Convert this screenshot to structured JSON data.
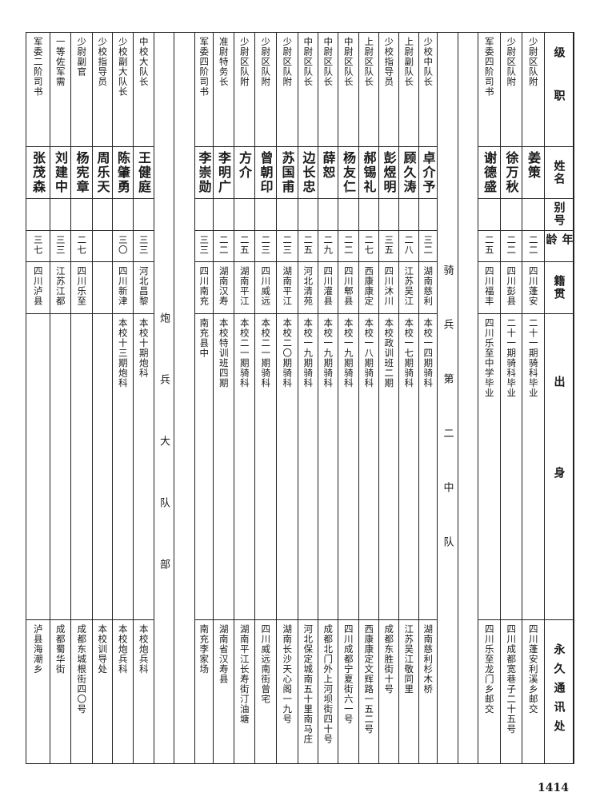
{
  "header": {
    "position": "级职",
    "name": "姓名",
    "alias": "别号",
    "age": "年龄",
    "hometown": "籍贯",
    "origin": "出身",
    "address": "永久通讯处"
  },
  "sections": {
    "cavalry": "骑兵第二中队",
    "artillery": "炮兵大队部"
  },
  "rows_prev_section": [
    {
      "position": "少尉区队附",
      "name": "姜策",
      "alias": "",
      "age": "二二",
      "hometown": "四川蓬安",
      "origin": "二十一期骑科毕业",
      "address": "四川蓬安利溪乡邮交"
    },
    {
      "position": "少尉区队附",
      "name": "徐万秋",
      "alias": "",
      "age": "二二",
      "hometown": "四川彭县",
      "origin": "二十一期骑科毕业",
      "address": "四川成都宽巷子二十五号"
    },
    {
      "position": "军委四阶司书",
      "name": "谢德盛",
      "alias": "",
      "age": "二五",
      "hometown": "四川福丰",
      "origin": "四川乐至中学毕业",
      "address": "四川乐至龙门乡邮交"
    }
  ],
  "rows_cavalry": [
    {
      "position": "少校中队长",
      "name": "卓介予",
      "alias": "",
      "age": "三二",
      "hometown": "湖南慈利",
      "origin": "本校一四期骑科",
      "address": "湖南慈利杉木桥"
    },
    {
      "position": "上尉副队长",
      "name": "顾久涛",
      "alias": "",
      "age": "二八",
      "hometown": "江苏吴江",
      "origin": "本校一七期骑科",
      "address": "江苏吴江敬同里"
    },
    {
      "position": "少校指导员",
      "name": "彭煜明",
      "alias": "",
      "age": "三五",
      "hometown": "四川沐川",
      "origin": "本校政训班二期",
      "address": "成都东胜街十号"
    },
    {
      "position": "上尉区队长",
      "name": "郝锡礼",
      "alias": "",
      "age": "二七",
      "hometown": "西康康定",
      "origin": "本校一八期骑科",
      "address": "西康康定文辉路一五二号"
    },
    {
      "position": "中尉区队长",
      "name": "杨友仁",
      "alias": "",
      "age": "二二",
      "hometown": "四川郫县",
      "origin": "本校一九期骑科",
      "address": "四川成都宁夏街六一号"
    },
    {
      "position": "中尉区队长",
      "name": "薛恕",
      "alias": "",
      "age": "二九",
      "hometown": "四川灌县",
      "origin": "本校一九期骑科",
      "address": "成都北门外上河坝街四十号"
    },
    {
      "position": "中尉区队长",
      "name": "边长忠",
      "alias": "",
      "age": "二五",
      "hometown": "河北清苑",
      "origin": "本校一九期骑科",
      "address": "河北保定城南五十里南马庄"
    },
    {
      "position": "少尉区队附",
      "name": "苏国甫",
      "alias": "",
      "age": "二三",
      "hometown": "湖南平江",
      "origin": "本校二〇期骑科",
      "address": "湖南长沙天心阁一九号"
    },
    {
      "position": "少尉区队附",
      "name": "曾朝印",
      "alias": "",
      "age": "二三",
      "hometown": "四川威远",
      "origin": "本校二一期骑科",
      "address": "四川威远南街曾宅"
    },
    {
      "position": "少尉区队附",
      "name": "方介",
      "alias": "",
      "age": "二五",
      "hometown": "湖南平江",
      "origin": "本校二一期骑科",
      "address": "湖南平江长寿街汀油塘"
    },
    {
      "position": "准尉特务长",
      "name": "李明广",
      "alias": "",
      "age": "二二",
      "hometown": "湖南汉寿",
      "origin": "本校特训班四期",
      "address": "湖南省汉寿县"
    },
    {
      "position": "军委四阶司书",
      "name": "李崇勋",
      "alias": "",
      "age": "三三",
      "hometown": "四川南充",
      "origin": "南充县中",
      "address": "南充李家场"
    }
  ],
  "rows_artillery": [
    {
      "position": "中校大队长",
      "name": "王健庭",
      "alias": "",
      "age": "三三",
      "hometown": "河北昌黎",
      "origin": "本校十期炮科",
      "address": "本校炮兵科"
    },
    {
      "position": "少校副大队长",
      "name": "陈肇勇",
      "alias": "",
      "age": "三〇",
      "hometown": "四川新津",
      "origin": "本校十三期炮科",
      "address": "本校炮兵科"
    },
    {
      "position": "少校指导员",
      "name": "周乐天",
      "alias": "",
      "age": "",
      "hometown": "",
      "origin": "",
      "address": "本校训导处"
    },
    {
      "position": "少尉副官",
      "name": "杨宪章",
      "alias": "",
      "age": "二七",
      "hometown": "四川乐至",
      "origin": "",
      "address": "成都东城根街四〇号"
    },
    {
      "position": "一等佐军需",
      "name": "刘建中",
      "alias": "",
      "age": "三三",
      "hometown": "江苏江都",
      "origin": "",
      "address": "成都蜀华街"
    },
    {
      "position": "军委二阶司书",
      "name": "张茂森",
      "alias": "",
      "age": "三七",
      "hometown": "四川泸县",
      "origin": "",
      "address": "泸县海潮乡"
    }
  ],
  "page_number": "1414"
}
